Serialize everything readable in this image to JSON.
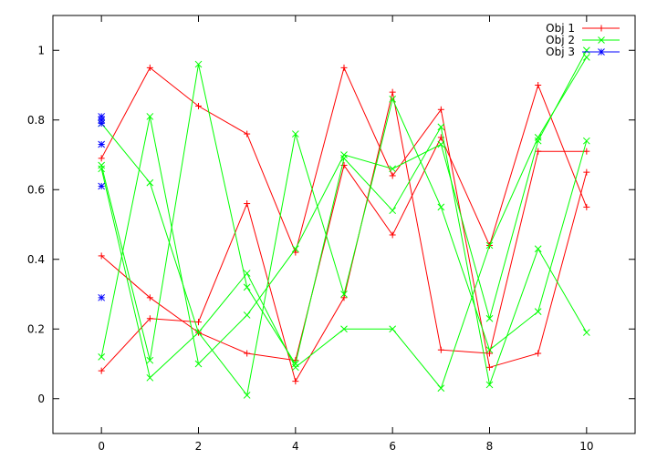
{
  "chart_data": {
    "type": "line",
    "title": "",
    "xlabel": "",
    "ylabel": "",
    "xlim": [
      -1,
      11
    ],
    "ylim": [
      -0.1,
      1.1
    ],
    "x_ticks": [
      0,
      2,
      4,
      6,
      8,
      10
    ],
    "x_tick_labels": [
      "0",
      "2",
      "4",
      "6",
      "8",
      "10"
    ],
    "y_ticks": [
      0,
      0.2,
      0.4,
      0.6,
      0.8,
      1
    ],
    "y_tick_labels": [
      "0",
      "0.2",
      "0.4",
      "0.6",
      "0.8",
      "1"
    ],
    "grid": false,
    "legend_position": "top-right",
    "series": [
      {
        "name": "Obj 1",
        "color": "#ff0000",
        "marker": "plus",
        "lines": [
          {
            "x": [
              0,
              1,
              2,
              3,
              4,
              5,
              6,
              7,
              8,
              9,
              10
            ],
            "y": [
              0.69,
              0.95,
              0.84,
              0.76,
              0.42,
              0.95,
              0.64,
              0.83,
              0.09,
              0.13,
              0.65
            ]
          },
          {
            "x": [
              0,
              1,
              2,
              3,
              4,
              5,
              6,
              7,
              8,
              9,
              10
            ],
            "y": [
              0.41,
              0.29,
              0.19,
              0.13,
              0.11,
              0.67,
              0.47,
              0.75,
              0.44,
              0.9,
              0.55
            ]
          },
          {
            "x": [
              0,
              1,
              2,
              3,
              4,
              5,
              6,
              7,
              8,
              9,
              10
            ],
            "y": [
              0.08,
              0.23,
              0.22,
              0.56,
              0.05,
              0.29,
              0.88,
              0.14,
              0.13,
              0.71,
              0.71
            ]
          }
        ]
      },
      {
        "name": "Obj 2",
        "color": "#00ff00",
        "marker": "cross",
        "lines": [
          {
            "x": [
              0,
              1,
              2,
              3,
              4,
              5,
              6,
              7,
              8,
              9,
              10
            ],
            "y": [
              0.79,
              0.62,
              0.19,
              0.36,
              0.09,
              0.2,
              0.2,
              0.03,
              0.44,
              0.75,
              0.98
            ]
          },
          {
            "x": [
              0,
              1,
              2,
              3,
              4,
              5,
              6,
              7,
              8,
              9,
              10
            ],
            "y": [
              0.66,
              0.06,
              0.19,
              0.01,
              0.76,
              0.3,
              0.86,
              0.55,
              0.14,
              0.25,
              0.74
            ]
          },
          {
            "x": [
              0,
              1,
              2,
              3,
              4,
              5,
              6,
              7,
              8,
              9,
              10
            ],
            "y": [
              0.12,
              0.81,
              0.1,
              0.24,
              0.43,
              0.7,
              0.66,
              0.73,
              0.23,
              0.74,
              1.0
            ]
          },
          {
            "x": [
              0,
              1,
              2,
              3,
              4,
              5,
              6,
              7,
              8,
              9,
              10
            ],
            "y": [
              0.67,
              0.11,
              0.96,
              0.32,
              0.1,
              0.69,
              0.54,
              0.78,
              0.04,
              0.43,
              0.19
            ]
          }
        ]
      },
      {
        "name": "Obj 3",
        "color": "#0000ff",
        "marker": "star",
        "points": {
          "x": [
            0,
            0,
            0,
            0,
            0,
            0
          ],
          "y": [
            0.81,
            0.79,
            0.73,
            0.61,
            0.29,
            0.8
          ]
        }
      }
    ]
  }
}
